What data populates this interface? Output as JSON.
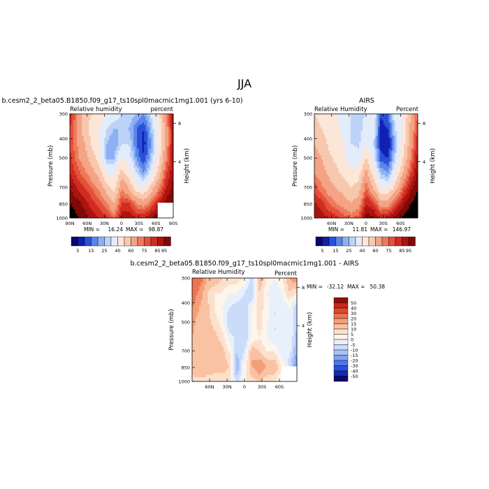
{
  "figure": {
    "title": "JJA",
    "colors": {
      "background": "#ffffff",
      "axis": "#000000",
      "missing": "#ffffff"
    }
  },
  "chart_data": [
    {
      "type": "heatmap",
      "panel": "model",
      "title": "b.cesm2_2_beta05.B1850.f09_g17_ts10spl0macmic1mg1.001 (yrs 6-10)",
      "left_label": "Relative humidity",
      "right_label": "percent",
      "xlabel": "",
      "ylabel": "Pressure (mb)",
      "right_axis_label": "Height (km)",
      "x_ticks": [
        "90N",
        "60N",
        "30N",
        "0",
        "30S",
        "60S",
        "90S"
      ],
      "y_ticks": [
        "300",
        "400",
        "500",
        "700",
        "850",
        "1000"
      ],
      "height_ticks": [
        "8",
        "4"
      ],
      "stats": {
        "min_label": "MIN =",
        "min": "16.24",
        "max_label": "MAX =",
        "max": "98.87"
      },
      "colorbar": {
        "orientation": "horizontal",
        "labels": [
          "5",
          "15",
          "25",
          "40",
          "60",
          "75",
          "85",
          "95"
        ]
      },
      "field": [
        [
          85,
          70,
          55,
          50,
          45,
          40,
          35,
          30,
          30,
          25,
          20,
          30,
          45,
          70,
          90
        ],
        [
          80,
          68,
          55,
          45,
          40,
          30,
          25,
          25,
          25,
          15,
          10,
          25,
          40,
          65,
          88
        ],
        [
          80,
          70,
          60,
          48,
          40,
          25,
          20,
          30,
          30,
          15,
          8,
          20,
          40,
          65,
          88
        ],
        [
          82,
          72,
          65,
          55,
          45,
          25,
          25,
          40,
          35,
          20,
          10,
          25,
          45,
          70,
          88
        ],
        [
          85,
          78,
          72,
          65,
          55,
          40,
          38,
          55,
          45,
          30,
          20,
          35,
          55,
          78,
          90
        ],
        [
          90,
          85,
          80,
          75,
          68,
          55,
          45,
          70,
          60,
          45,
          40,
          55,
          70,
          85,
          92
        ],
        [
          95,
          92,
          88,
          82,
          78,
          70,
          60,
          80,
          80,
          70,
          65,
          75,
          85,
          92,
          95
        ],
        [
          98,
          96,
          92,
          88,
          85,
          82,
          75,
          88,
          90,
          85,
          85,
          90,
          95,
          null,
          null
        ]
      ]
    },
    {
      "type": "heatmap",
      "panel": "observations",
      "title": "AIRS",
      "left_label": "Relative Humidity",
      "right_label": "Percent",
      "xlabel": "",
      "ylabel": "Pressure (mb)",
      "right_axis_label": "Height (km)",
      "x_ticks": [
        "60N",
        "30N",
        "0",
        "30S",
        "60S"
      ],
      "y_ticks": [
        "300",
        "400",
        "500",
        "700",
        "850",
        "1000"
      ],
      "height_ticks": [
        "8",
        "4"
      ],
      "stats": {
        "min_label": "MIN =",
        "min": "11.81",
        "max_label": "MAX =",
        "max": "146.97"
      },
      "colorbar": {
        "orientation": "horizontal",
        "labels": [
          "5",
          "15",
          "25",
          "40",
          "60",
          "75",
          "85",
          "95"
        ]
      },
      "field": [
        [
          50,
          45,
          40,
          40,
          35,
          30,
          28,
          30,
          40,
          10,
          15,
          35,
          40,
          60,
          75
        ],
        [
          55,
          50,
          45,
          42,
          38,
          30,
          25,
          35,
          35,
          8,
          10,
          30,
          40,
          62,
          80
        ],
        [
          60,
          55,
          48,
          45,
          40,
          30,
          28,
          40,
          30,
          8,
          5,
          25,
          45,
          65,
          85
        ],
        [
          65,
          60,
          52,
          48,
          42,
          35,
          35,
          50,
          35,
          12,
          10,
          30,
          50,
          70,
          88
        ],
        [
          70,
          65,
          58,
          52,
          48,
          42,
          45,
          65,
          45,
          25,
          20,
          40,
          60,
          78,
          92
        ],
        [
          78,
          72,
          65,
          60,
          55,
          50,
          55,
          75,
          60,
          40,
          40,
          55,
          75,
          88,
          95
        ],
        [
          85,
          82,
          75,
          70,
          65,
          60,
          65,
          85,
          80,
          65,
          65,
          78,
          88,
          95,
          98
        ],
        [
          90,
          88,
          85,
          82,
          78,
          75,
          78,
          92,
          92,
          85,
          88,
          92,
          96,
          99,
          99
        ]
      ]
    },
    {
      "type": "heatmap",
      "panel": "difference",
      "title": "b.cesm2_2_beta05.B1850.f09_g17_ts10spl0macmic1mg1.001 - AIRS",
      "left_label": "Relative Humidity",
      "right_label": "Percent",
      "xlabel": "",
      "ylabel": "Pressure (mb)",
      "right_axis_label": "Height (km)",
      "x_ticks": [
        "60N",
        "30N",
        "0",
        "30S",
        "60S"
      ],
      "y_ticks": [
        "300",
        "400",
        "500",
        "700",
        "850",
        "1000"
      ],
      "height_ticks": [
        "8",
        "4"
      ],
      "stats": {
        "min_label": "MIN =",
        "min": "-32.12",
        "max_label": "MAX =",
        "max": "50.38"
      },
      "colorbar": {
        "orientation": "vertical",
        "labels": [
          "50",
          "40",
          "30",
          "20",
          "15",
          "10",
          "5",
          "0",
          "-5",
          "-10",
          "-15",
          "-20",
          "-30",
          "-40",
          "-50"
        ]
      },
      "field": [
        [
          30,
          25,
          15,
          15,
          10,
          10,
          8,
          5,
          -8,
          15,
          5,
          0,
          5,
          15,
          20
        ],
        [
          25,
          18,
          10,
          5,
          5,
          0,
          0,
          -5,
          -10,
          10,
          0,
          -5,
          0,
          10,
          5
        ],
        [
          20,
          15,
          12,
          5,
          0,
          -5,
          -8,
          -10,
          0,
          7,
          3,
          -5,
          -5,
          0,
          -10
        ],
        [
          17,
          12,
          13,
          7,
          3,
          -10,
          -10,
          -10,
          0,
          8,
          0,
          -5,
          -5,
          0,
          -10
        ],
        [
          15,
          13,
          14,
          13,
          7,
          -2,
          -7,
          -10,
          0,
          5,
          0,
          -5,
          -5,
          0,
          -12
        ],
        [
          12,
          13,
          15,
          15,
          13,
          5,
          -10,
          -5,
          15,
          10,
          5,
          5,
          -5,
          -3,
          -15
        ],
        [
          13,
          13,
          15,
          13,
          13,
          10,
          -15,
          3,
          15,
          20,
          15,
          15,
          5,
          -8,
          -20
        ],
        [
          8,
          9,
          7,
          6,
          7,
          7,
          -8,
          4,
          8,
          10,
          7,
          5,
          0,
          null,
          null
        ]
      ]
    }
  ]
}
